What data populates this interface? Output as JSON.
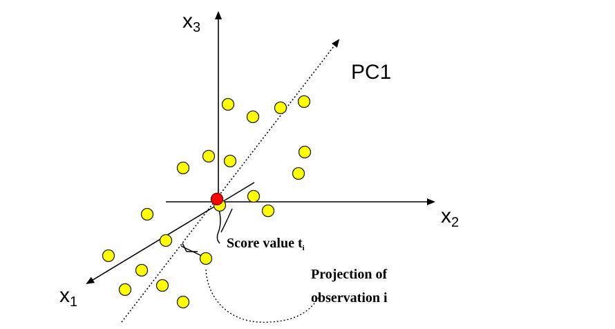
{
  "axes": {
    "x1": {
      "base": "x",
      "sub": "1"
    },
    "x2": {
      "base": "x",
      "sub": "2"
    },
    "x3": {
      "base": "x",
      "sub": "3"
    }
  },
  "pc_label": "PC1",
  "score_label": {
    "text": "Score value t",
    "sub": "i"
  },
  "projection_label": {
    "line1": "Projection of",
    "line2": "observation i"
  },
  "colors": {
    "point": "#ffff00",
    "center_point": "#ff0000",
    "axis": "#000000"
  }
}
